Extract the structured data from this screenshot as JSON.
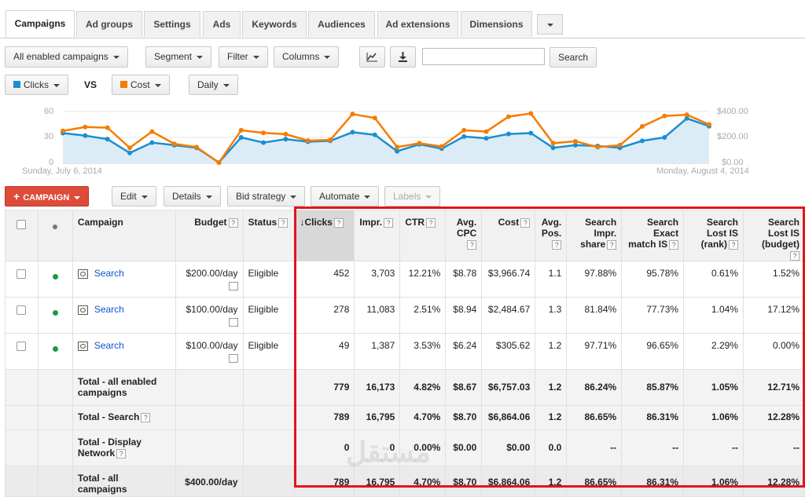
{
  "tabs": [
    {
      "label": "Campaigns",
      "active": true
    },
    {
      "label": "Ad groups"
    },
    {
      "label": "Settings"
    },
    {
      "label": "Ads"
    },
    {
      "label": "Keywords"
    },
    {
      "label": "Audiences"
    },
    {
      "label": "Ad extensions"
    },
    {
      "label": "Dimensions"
    }
  ],
  "toolbar": {
    "filter_view": "All enabled campaigns",
    "segment": "Segment",
    "filter": "Filter",
    "columns": "Columns",
    "search_value": "",
    "search_button": "Search"
  },
  "chart_controls": {
    "metric1": "Clicks",
    "metric1_color": "#1a8fd1",
    "vs": "VS",
    "metric2": "Cost",
    "metric2_color": "#f57c00",
    "period": "Daily"
  },
  "chart_data": {
    "type": "line",
    "left_ticks": [
      "60",
      "30",
      "0"
    ],
    "right_ticks": [
      "$400.00",
      "$200.00",
      "$0.00"
    ],
    "x_start_label": "Sunday, July 6, 2014",
    "x_end_label": "Monday, August 4, 2014",
    "ylim_left": [
      0,
      60
    ],
    "ylim_right": [
      0,
      400
    ],
    "series": [
      {
        "name": "Clicks",
        "color": "#1a8fd1",
        "values": [
          35,
          32,
          28,
          12,
          24,
          21,
          18,
          1,
          30,
          24,
          28,
          25,
          26,
          36,
          33,
          14,
          22,
          17,
          31,
          29,
          34,
          35,
          18,
          21,
          20,
          18,
          26,
          30,
          52,
          43
        ]
      },
      {
        "name": "Cost",
        "color": "#f57c00",
        "values": [
          250,
          280,
          275,
          120,
          245,
          150,
          125,
          5,
          255,
          235,
          225,
          175,
          180,
          380,
          350,
          125,
          155,
          130,
          255,
          245,
          360,
          385,
          155,
          170,
          125,
          140,
          285,
          365,
          375,
          300
        ]
      }
    ]
  },
  "actions": {
    "new_campaign": "CAMPAIGN",
    "edit": "Edit",
    "details": "Details",
    "bid_strategy": "Bid strategy",
    "automate": "Automate",
    "labels": "Labels"
  },
  "table": {
    "headers": {
      "campaign": "Campaign",
      "budget": "Budget",
      "status": "Status",
      "clicks": "Clicks",
      "impr": "Impr.",
      "ctr": "CTR",
      "avg_cpc": "Avg. CPC",
      "cost": "Cost",
      "avg_pos": "Avg. Pos.",
      "search_impr_share": "Search Impr. share",
      "search_exact_match_is": "Search Exact match IS",
      "search_lost_is_rank": "Search Lost IS (rank)",
      "search_lost_is_budget": "Search Lost IS (budget)"
    },
    "help_glyph": "?",
    "sort_arrow": "↓",
    "rows": [
      {
        "campaign": "Search",
        "budget": "$200.00/day",
        "status": "Eligible",
        "clicks": "452",
        "impr": "3,703",
        "ctr": "12.21%",
        "cpc": "$8.78",
        "cost": "$3,966.74",
        "pos": "1.1",
        "sis": "97.88%",
        "sem": "95.78%",
        "lrank": "0.61%",
        "lbud": "1.52%"
      },
      {
        "campaign": "Search",
        "budget": "$100.00/day",
        "status": "Eligible",
        "clicks": "278",
        "impr": "11,083",
        "ctr": "2.51%",
        "cpc": "$8.94",
        "cost": "$2,484.67",
        "pos": "1.3",
        "sis": "81.84%",
        "sem": "77.73%",
        "lrank": "1.04%",
        "lbud": "17.12%"
      },
      {
        "campaign": "Search",
        "budget": "$100.00/day",
        "status": "Eligible",
        "clicks": "49",
        "impr": "1,387",
        "ctr": "3.53%",
        "cpc": "$6.24",
        "cost": "$305.62",
        "pos": "1.2",
        "sis": "97.71%",
        "sem": "96.65%",
        "lrank": "2.29%",
        "lbud": "0.00%"
      }
    ],
    "totals": [
      {
        "label": "Total - all enabled campaigns",
        "budget": "",
        "clicks": "779",
        "impr": "16,173",
        "ctr": "4.82%",
        "cpc": "$8.67",
        "cost": "$6,757.03",
        "pos": "1.2",
        "sis": "86.24%",
        "sem": "85.87%",
        "lrank": "1.05%",
        "lbud": "12.71%"
      },
      {
        "label": "Total - Search",
        "budget": "",
        "clicks": "789",
        "impr": "16,795",
        "ctr": "4.70%",
        "cpc": "$8.70",
        "cost": "$6,864.06",
        "pos": "1.2",
        "sis": "86.65%",
        "sem": "86.31%",
        "lrank": "1.06%",
        "lbud": "12.28%"
      },
      {
        "label": "Total - Display Network",
        "budget": "",
        "clicks": "0",
        "impr": "0",
        "ctr": "0.00%",
        "cpc": "$0.00",
        "cost": "$0.00",
        "pos": "0.0",
        "sis": "--",
        "sem": "--",
        "lrank": "--",
        "lbud": "--"
      },
      {
        "label": "Total - all campaigns",
        "budget": "$400.00/day",
        "clicks": "789",
        "impr": "16,795",
        "ctr": "4.70%",
        "cpc": "$8.70",
        "cost": "$6,864.06",
        "pos": "1.2",
        "sis": "86.65%",
        "sem": "86.31%",
        "lrank": "1.06%",
        "lbud": "12.28%"
      }
    ]
  }
}
